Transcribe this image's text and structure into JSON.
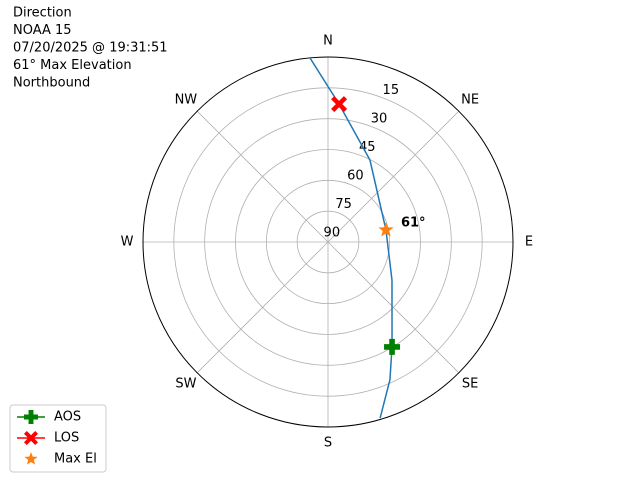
{
  "chart_data": {
    "type": "polar",
    "title_lines": [
      "Direction",
      "NOAA 15",
      "07/20/2025 @ 19:31:51",
      "61° Max Elevation",
      "Northbound"
    ],
    "xticks": [
      {
        "value": 0,
        "label": "N"
      },
      {
        "value": 45,
        "label": "NE"
      },
      {
        "value": 90,
        "label": "E"
      },
      {
        "value": 135,
        "label": "SE"
      },
      {
        "value": 180,
        "label": "S"
      },
      {
        "value": 225,
        "label": "SW"
      },
      {
        "value": 270,
        "label": "W"
      },
      {
        "value": 315,
        "label": "NW"
      }
    ],
    "ylim": [
      90,
      0
    ],
    "yticks": [
      90,
      75,
      60,
      45,
      30,
      15
    ],
    "grid": true,
    "legend": "lower left",
    "track": {
      "color": "#1f77b4",
      "x": [
        354.4,
        4.6,
        27.1,
        78.3,
        120.7,
        148.6,
        155.8,
        163.5
      ],
      "values": [
        0,
        22.7,
        45.2,
        61.2,
        53.8,
        30.2,
        16.5,
        0.7
      ]
    },
    "series": [
      {
        "name": "AOS",
        "color": "#008000",
        "marker": "plus",
        "legend_line": true,
        "x": [
          148.6
        ],
        "values": [
          30.2
        ]
      },
      {
        "name": "LOS",
        "color": "#ff0000",
        "marker": "x",
        "legend_line": true,
        "x": [
          4.6
        ],
        "values": [
          22.7
        ]
      },
      {
        "name": "Max El",
        "color": "#ff7f0e",
        "marker": "star",
        "legend_line": false,
        "x": [
          78.3
        ],
        "values": [
          61.2
        ],
        "value_labels": [
          "61°"
        ]
      }
    ]
  }
}
